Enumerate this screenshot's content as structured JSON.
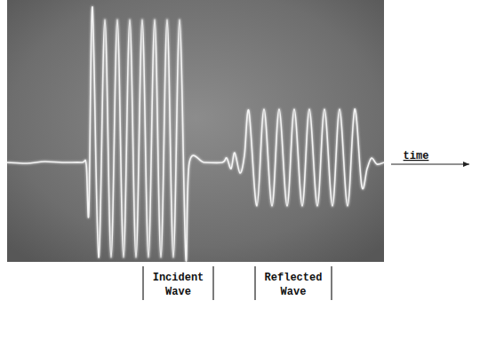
{
  "chart_data": {
    "type": "line",
    "x_label": "time",
    "annotations": [
      {
        "lines": [
          "Incident",
          "Wave"
        ]
      },
      {
        "lines": [
          "Reflected",
          "Wave"
        ]
      }
    ],
    "tick_labels": false,
    "grid": false,
    "xlim": [
      0,
      424
    ],
    "ylim": [
      -112,
      183
    ],
    "x": [
      0,
      22,
      42,
      62,
      84,
      89,
      92,
      96,
      103,
      110,
      117,
      124,
      131,
      138,
      145,
      152,
      159,
      166,
      173,
      180,
      187,
      194,
      201,
      205,
      222,
      242,
      247,
      252,
      256,
      262,
      267,
      272,
      281,
      289,
      298,
      306,
      315,
      323,
      332,
      340,
      349,
      357,
      366,
      374,
      383,
      391,
      399,
      405,
      410,
      416,
      424
    ],
    "series": [
      {
        "color": "#f4f4f4",
        "line_style": "solid",
        "values": [
          0,
          -1,
          1,
          0,
          0,
          -2,
          -55,
          175,
          -107,
          161,
          -107,
          161,
          -107,
          161,
          -107,
          161,
          -107,
          161,
          -107,
          161,
          -107,
          161,
          -107,
          0,
          0,
          0,
          5,
          -7,
          11,
          -12,
          8,
          58,
          -49,
          60,
          -49,
          60,
          -49,
          60,
          -49,
          60,
          -49,
          60,
          -49,
          60,
          -49,
          60,
          -27,
          -7,
          5,
          -2,
          0
        ]
      }
    ]
  }
}
